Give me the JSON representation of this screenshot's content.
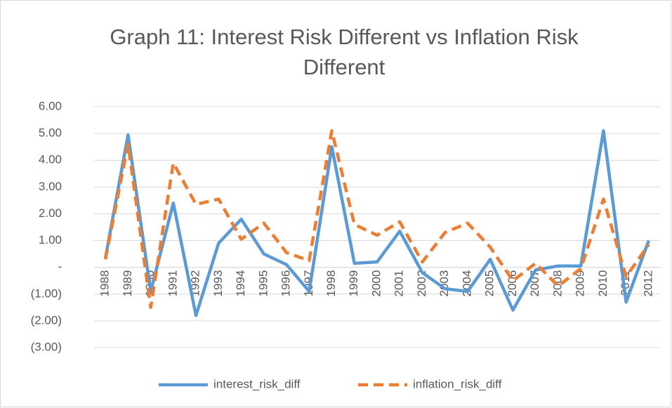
{
  "chart_data": {
    "type": "line",
    "title": [
      "Graph 11: Interest Risk Different vs Inflation Risk",
      "Different"
    ],
    "categories": [
      "1988",
      "1989",
      "1990",
      "1991",
      "1992",
      "1993",
      "1994",
      "1995",
      "1996",
      "1997",
      "1998",
      "1999",
      "2000",
      "2001",
      "2002",
      "2003",
      "2004",
      "2005",
      "2006",
      "2007",
      "2008",
      "2009",
      "2010",
      "2011",
      "2012"
    ],
    "series": [
      {
        "name": "interest_risk_diff",
        "color": "#5b9bd5",
        "dash": "solid",
        "values": [
          0.35,
          4.95,
          -0.9,
          2.4,
          -1.8,
          0.9,
          1.8,
          0.5,
          0.1,
          -0.9,
          4.5,
          0.15,
          0.2,
          1.35,
          -0.2,
          -0.8,
          -0.9,
          0.3,
          -1.6,
          -0.1,
          0.05,
          0.05,
          5.1,
          -1.3,
          1.0
        ]
      },
      {
        "name": "inflation_risk_diff",
        "color": "#ed7d31",
        "dash": "dashed",
        "values": [
          0.3,
          4.6,
          -1.5,
          3.9,
          2.35,
          2.55,
          1.05,
          1.65,
          0.55,
          0.25,
          5.1,
          1.6,
          1.2,
          1.7,
          0.2,
          1.3,
          1.65,
          0.75,
          -0.5,
          0.15,
          -0.7,
          -0.05,
          2.55,
          -0.35,
          0.85
        ]
      }
    ],
    "ylim": [
      -3,
      6
    ],
    "yticks": [
      {
        "value": -3,
        "label": "(3.00)"
      },
      {
        "value": -2,
        "label": "(2.00)"
      },
      {
        "value": -1,
        "label": "(1.00)"
      },
      {
        "value": 0,
        "label": "-"
      },
      {
        "value": 1,
        "label": "1.00"
      },
      {
        "value": 2,
        "label": "2.00"
      },
      {
        "value": 3,
        "label": "3.00"
      },
      {
        "value": 4,
        "label": "4.00"
      },
      {
        "value": 5,
        "label": "5.00"
      },
      {
        "value": 6,
        "label": "6.00"
      }
    ],
    "grid": true,
    "legend": "bottom"
  }
}
